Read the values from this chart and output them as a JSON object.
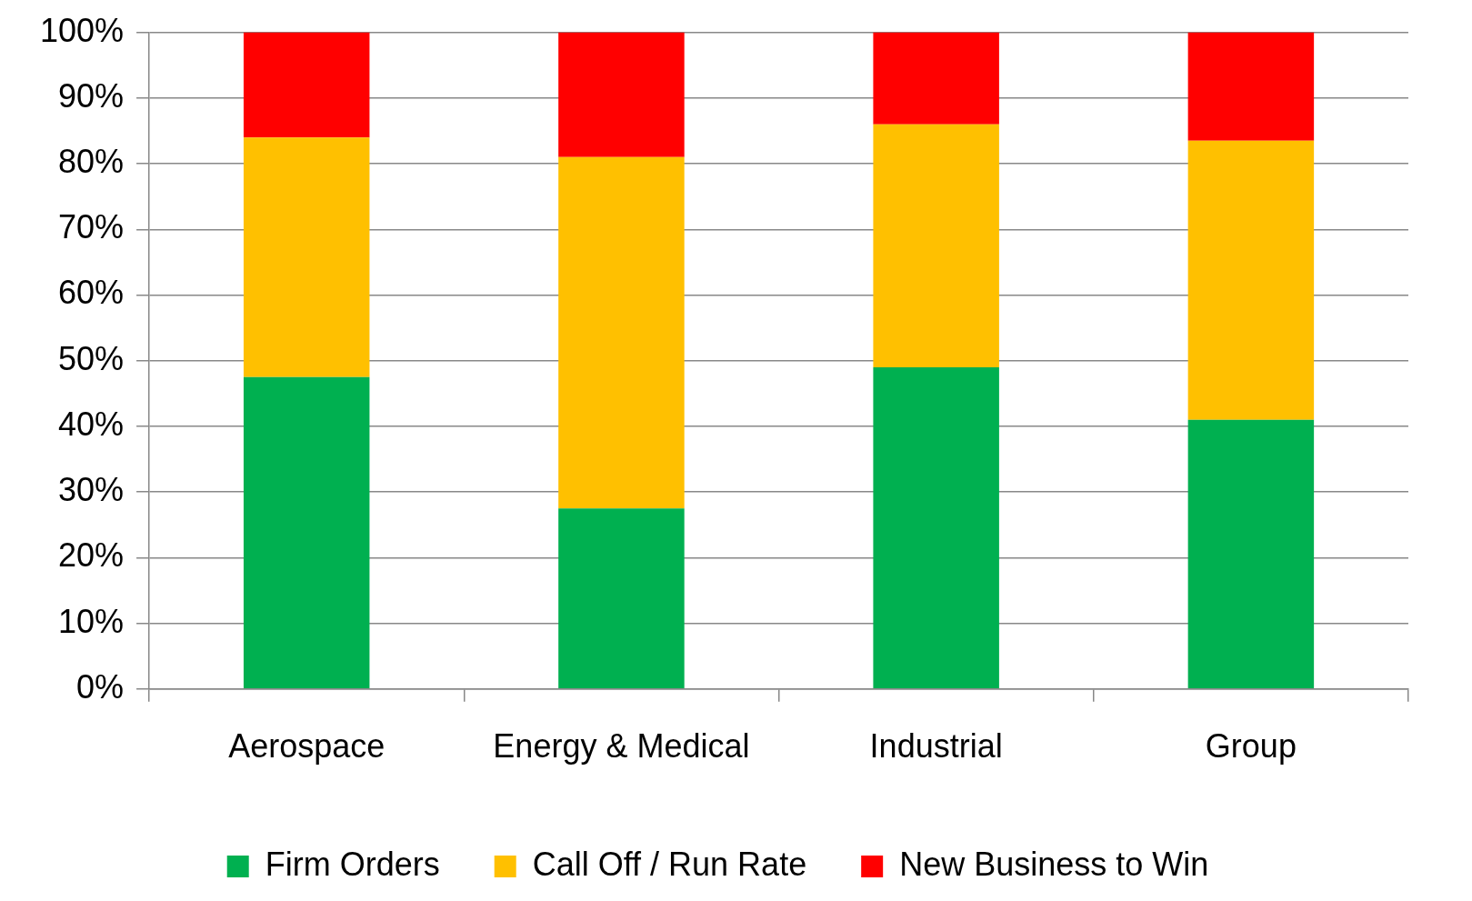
{
  "chart_data": {
    "type": "bar",
    "stacked": true,
    "categories": [
      "Aerospace",
      "Energy & Medical",
      "Industrial",
      "Group"
    ],
    "series": [
      {
        "name": "Firm Orders",
        "color": "#00b050",
        "values": [
          47.5,
          27.5,
          49,
          41
        ]
      },
      {
        "name": "Call Off / Run Rate",
        "color": "#ffc000",
        "values": [
          36.5,
          53.5,
          37,
          42.5
        ]
      },
      {
        "name": "New Business to Win",
        "color": "#ff0000",
        "values": [
          16,
          19,
          14,
          16.5
        ]
      }
    ],
    "ylim": [
      0,
      100
    ],
    "yticks": [
      {
        "value": 0,
        "label": "0%"
      },
      {
        "value": 10,
        "label": "10%"
      },
      {
        "value": 20,
        "label": "20%"
      },
      {
        "value": 30,
        "label": "30%"
      },
      {
        "value": 40,
        "label": "40%"
      },
      {
        "value": 50,
        "label": "50%"
      },
      {
        "value": 60,
        "label": "60%"
      },
      {
        "value": 70,
        "label": "70%"
      },
      {
        "value": 80,
        "label": "80%"
      },
      {
        "value": 90,
        "label": "90%"
      },
      {
        "value": 100,
        "label": "100%"
      }
    ],
    "grid": "y",
    "legend": "bottom"
  }
}
